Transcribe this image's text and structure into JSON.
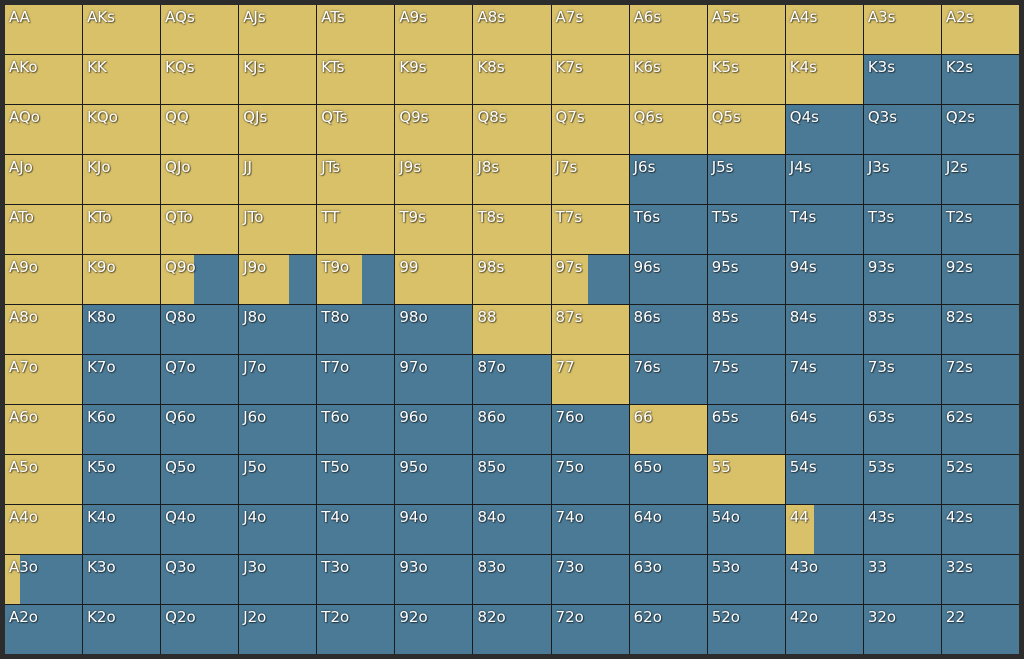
{
  "colors": {
    "raise": "#d9c16a",
    "fold": "#4b7a96",
    "gridline": "#1b1b1b",
    "background": "#2c2c2c"
  },
  "ranks": [
    "A",
    "K",
    "Q",
    "J",
    "T",
    "9",
    "8",
    "7",
    "6",
    "5",
    "4",
    "3",
    "2"
  ],
  "hands": [
    [
      "AA",
      "AKs",
      "AQs",
      "AJs",
      "ATs",
      "A9s",
      "A8s",
      "A7s",
      "A6s",
      "A5s",
      "A4s",
      "A3s",
      "A2s"
    ],
    [
      "AKo",
      "KK",
      "KQs",
      "KJs",
      "KTs",
      "K9s",
      "K8s",
      "K7s",
      "K6s",
      "K5s",
      "K4s",
      "K3s",
      "K2s"
    ],
    [
      "AQo",
      "KQo",
      "QQ",
      "QJs",
      "QTs",
      "Q9s",
      "Q8s",
      "Q7s",
      "Q6s",
      "Q5s",
      "Q4s",
      "Q3s",
      "Q2s"
    ],
    [
      "AJo",
      "KJo",
      "QJo",
      "JJ",
      "JTs",
      "J9s",
      "J8s",
      "J7s",
      "J6s",
      "J5s",
      "J4s",
      "J3s",
      "J2s"
    ],
    [
      "ATo",
      "KTo",
      "QTo",
      "JTo",
      "TT",
      "T9s",
      "T8s",
      "T7s",
      "T6s",
      "T5s",
      "T4s",
      "T3s",
      "T2s"
    ],
    [
      "A9o",
      "K9o",
      "Q9o",
      "J9o",
      "T9o",
      "99",
      "98s",
      "97s",
      "96s",
      "95s",
      "94s",
      "93s",
      "92s"
    ],
    [
      "A8o",
      "K8o",
      "Q8o",
      "J8o",
      "T8o",
      "98o",
      "88",
      "87s",
      "86s",
      "85s",
      "84s",
      "83s",
      "82s"
    ],
    [
      "A7o",
      "K7o",
      "Q7o",
      "J7o",
      "T7o",
      "97o",
      "87o",
      "77",
      "76s",
      "75s",
      "74s",
      "73s",
      "72s"
    ],
    [
      "A6o",
      "K6o",
      "Q6o",
      "J6o",
      "T6o",
      "96o",
      "86o",
      "76o",
      "66",
      "65s",
      "64s",
      "63s",
      "62s"
    ],
    [
      "A5o",
      "K5o",
      "Q5o",
      "J5o",
      "T5o",
      "95o",
      "85o",
      "75o",
      "65o",
      "55",
      "54s",
      "53s",
      "52s"
    ],
    [
      "A4o",
      "K4o",
      "Q4o",
      "J4o",
      "T4o",
      "94o",
      "84o",
      "74o",
      "64o",
      "54o",
      "44",
      "43s",
      "42s"
    ],
    [
      "A3o",
      "K3o",
      "Q3o",
      "J3o",
      "T3o",
      "93o",
      "83o",
      "73o",
      "63o",
      "53o",
      "43o",
      "33",
      "32s"
    ],
    [
      "A2o",
      "K2o",
      "Q2o",
      "J2o",
      "T2o",
      "92o",
      "82o",
      "72o",
      "62o",
      "52o",
      "42o",
      "32o",
      "22"
    ]
  ],
  "raise_frequency": [
    [
      1,
      1,
      1,
      1,
      1,
      1,
      1,
      1,
      1,
      1,
      1,
      1,
      1
    ],
    [
      1,
      1,
      1,
      1,
      1,
      1,
      1,
      1,
      1,
      1,
      1,
      0,
      0
    ],
    [
      1,
      1,
      1,
      1,
      1,
      1,
      1,
      1,
      1,
      1,
      0,
      0,
      0
    ],
    [
      1,
      1,
      1,
      1,
      1,
      1,
      1,
      1,
      0,
      0,
      0,
      0,
      0
    ],
    [
      1,
      1,
      1,
      1,
      1,
      1,
      1,
      1,
      0,
      0,
      0,
      0,
      0
    ],
    [
      1,
      1,
      0.42,
      0.64,
      0.58,
      1,
      1,
      0.47,
      0,
      0,
      0,
      0,
      0
    ],
    [
      1,
      0,
      0,
      0,
      0,
      0,
      1,
      1,
      0,
      0,
      0,
      0,
      0
    ],
    [
      1,
      0,
      0,
      0,
      0,
      0,
      0,
      1,
      0,
      0,
      0,
      0,
      0
    ],
    [
      1,
      0,
      0,
      0,
      0,
      0,
      0,
      0,
      1,
      0,
      0,
      0,
      0
    ],
    [
      1,
      0,
      0,
      0,
      0,
      0,
      0,
      0,
      0,
      1,
      0,
      0,
      0
    ],
    [
      1,
      0,
      0,
      0,
      0,
      0,
      0,
      0,
      0,
      0,
      0.36,
      0,
      0
    ],
    [
      0.2,
      0,
      0,
      0,
      0,
      0,
      0,
      0,
      0,
      0,
      0,
      0,
      0
    ],
    [
      0,
      0,
      0,
      0,
      0,
      0,
      0,
      0,
      0,
      0,
      0,
      0,
      0
    ]
  ]
}
